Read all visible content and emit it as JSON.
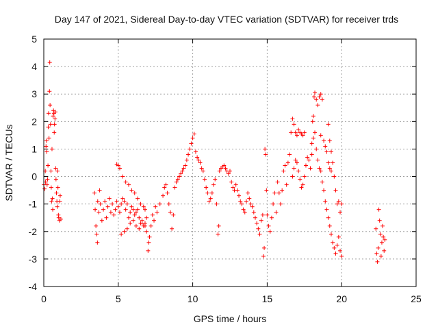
{
  "chart_data": {
    "type": "scatter",
    "title": "Day 147 of 2021, Sidereal Day-to-day VTEC variation (SDTVAR) for receiver trds",
    "xlabel": "GPS time / hours",
    "ylabel": "SDTVAR / TECUs",
    "xlim": [
      0,
      25
    ],
    "ylim": [
      -4,
      5
    ],
    "xticks": [
      0,
      5,
      10,
      15,
      20,
      25
    ],
    "yticks": [
      -4,
      -3,
      -2,
      -1,
      0,
      1,
      2,
      3,
      4,
      5
    ],
    "grid": true,
    "marker": "+",
    "color": "#ff0000",
    "series": [
      {
        "name": "SDTVAR",
        "points": [
          [
            0.0,
            -0.3
          ],
          [
            0.05,
            -0.45
          ],
          [
            0.1,
            0.2
          ],
          [
            0.12,
            -0.2
          ],
          [
            0.15,
            1.1
          ],
          [
            0.18,
            1.3
          ],
          [
            0.2,
            0.9
          ],
          [
            0.22,
            -0.3
          ],
          [
            0.25,
            -0.1
          ],
          [
            0.28,
            0.4
          ],
          [
            0.3,
            1.8
          ],
          [
            0.32,
            2.3
          ],
          [
            0.35,
            1.4
          ],
          [
            0.38,
            3.1
          ],
          [
            0.4,
            4.15
          ],
          [
            0.42,
            2.6
          ],
          [
            0.45,
            1.9
          ],
          [
            0.48,
            0.2
          ],
          [
            0.5,
            -0.4
          ],
          [
            0.52,
            -0.9
          ],
          [
            0.55,
            1.0
          ],
          [
            0.58,
            -0.8
          ],
          [
            0.6,
            -1.2
          ],
          [
            0.62,
            2.2
          ],
          [
            0.65,
            2.4
          ],
          [
            0.68,
            2.3
          ],
          [
            0.7,
            1.6
          ],
          [
            0.72,
            1.9
          ],
          [
            0.75,
            2.1
          ],
          [
            0.78,
            2.35
          ],
          [
            0.8,
            0.3
          ],
          [
            0.82,
            -0.1
          ],
          [
            0.85,
            -0.6
          ],
          [
            0.88,
            -0.9
          ],
          [
            0.9,
            -1.1
          ],
          [
            0.92,
            0.2
          ],
          [
            0.95,
            -0.4
          ],
          [
            0.98,
            -1.4
          ],
          [
            1.0,
            -1.5
          ],
          [
            1.05,
            -1.6
          ],
          [
            1.08,
            -0.9
          ],
          [
            1.1,
            -0.7
          ],
          [
            1.15,
            -1.55
          ],
          [
            3.4,
            -0.6
          ],
          [
            3.45,
            -1.2
          ],
          [
            3.5,
            -1.8
          ],
          [
            3.55,
            -2.1
          ],
          [
            3.6,
            -2.4
          ],
          [
            3.62,
            -0.9
          ],
          [
            3.7,
            -1.3
          ],
          [
            3.75,
            -0.5
          ],
          [
            3.8,
            -1.0
          ],
          [
            3.9,
            -1.6
          ],
          [
            4.0,
            -1.2
          ],
          [
            4.1,
            -0.9
          ],
          [
            4.2,
            -1.5
          ],
          [
            4.3,
            -1.1
          ],
          [
            4.4,
            -0.8
          ],
          [
            4.5,
            -1.3
          ],
          [
            4.6,
            -1.0
          ],
          [
            4.7,
            -1.4
          ],
          [
            4.8,
            -1.2
          ],
          [
            4.9,
            -0.9
          ],
          [
            5.0,
            -1.1
          ],
          [
            5.1,
            -1.3
          ],
          [
            5.2,
            -1.0
          ],
          [
            5.3,
            -0.8
          ],
          [
            5.4,
            -0.9
          ],
          [
            5.5,
            -1.2
          ],
          [
            5.6,
            -1.0
          ],
          [
            5.7,
            -1.5
          ],
          [
            5.8,
            -1.3
          ],
          [
            5.9,
            -1.1
          ],
          [
            6.0,
            -1.2
          ],
          [
            6.1,
            -1.4
          ],
          [
            6.2,
            -1.3
          ],
          [
            6.3,
            -1.2
          ],
          [
            6.4,
            -1.5
          ],
          [
            6.5,
            -1.7
          ],
          [
            6.6,
            -1.6
          ],
          [
            6.7,
            -1.8
          ],
          [
            6.8,
            -1.7
          ],
          [
            6.9,
            -2.0
          ],
          [
            7.0,
            -2.7
          ],
          [
            7.05,
            -2.4
          ],
          [
            7.1,
            -2.2
          ],
          [
            7.2,
            -1.8
          ],
          [
            7.3,
            -1.4
          ],
          [
            7.4,
            -1.6
          ],
          [
            7.5,
            -1.1
          ],
          [
            4.9,
            0.45
          ],
          [
            5.0,
            0.4
          ],
          [
            5.1,
            0.3
          ],
          [
            5.3,
            0.0
          ],
          [
            5.5,
            -0.2
          ],
          [
            5.7,
            -0.3
          ],
          [
            5.9,
            -0.5
          ],
          [
            6.1,
            -0.6
          ],
          [
            6.3,
            -0.8
          ],
          [
            6.5,
            -1.0
          ],
          [
            6.7,
            -1.1
          ],
          [
            6.8,
            -1.2
          ],
          [
            6.9,
            -1.5
          ],
          [
            5.2,
            -2.1
          ],
          [
            5.4,
            -2.0
          ],
          [
            5.6,
            -1.9
          ],
          [
            5.8,
            -1.7
          ],
          [
            6.0,
            -1.6
          ],
          [
            6.2,
            -1.8
          ],
          [
            6.4,
            -1.9
          ],
          [
            6.6,
            -1.7
          ],
          [
            6.8,
            -1.8
          ],
          [
            7.6,
            -1.3
          ],
          [
            7.8,
            -1.0
          ],
          [
            8.0,
            -0.7
          ],
          [
            8.1,
            -0.4
          ],
          [
            8.2,
            -0.3
          ],
          [
            8.3,
            -0.6
          ],
          [
            8.4,
            -1.0
          ],
          [
            8.5,
            -1.3
          ],
          [
            8.6,
            -1.9
          ],
          [
            8.7,
            -1.4
          ],
          [
            8.8,
            -0.4
          ],
          [
            8.9,
            -0.2
          ],
          [
            9.0,
            -0.1
          ],
          [
            9.1,
            0.0
          ],
          [
            9.2,
            0.1
          ],
          [
            9.3,
            0.2
          ],
          [
            9.4,
            0.3
          ],
          [
            9.5,
            0.4
          ],
          [
            9.6,
            0.6
          ],
          [
            9.7,
            0.8
          ],
          [
            9.8,
            1.0
          ],
          [
            9.9,
            1.2
          ],
          [
            10.0,
            1.4
          ],
          [
            10.1,
            1.55
          ],
          [
            10.2,
            0.9
          ],
          [
            10.3,
            0.7
          ],
          [
            10.4,
            0.6
          ],
          [
            10.5,
            0.5
          ],
          [
            10.6,
            0.3
          ],
          [
            10.7,
            0.2
          ],
          [
            10.8,
            -0.1
          ],
          [
            10.9,
            -0.4
          ],
          [
            11.0,
            -0.6
          ],
          [
            11.1,
            -0.9
          ],
          [
            11.2,
            -0.8
          ],
          [
            11.3,
            -0.6
          ],
          [
            11.4,
            -0.3
          ],
          [
            11.5,
            -0.1
          ],
          [
            11.6,
            -1.0
          ],
          [
            11.7,
            -2.1
          ],
          [
            11.75,
            -1.8
          ],
          [
            11.8,
            0.2
          ],
          [
            11.9,
            0.3
          ],
          [
            12.0,
            0.35
          ],
          [
            12.1,
            0.4
          ],
          [
            12.2,
            0.3
          ],
          [
            12.3,
            0.2
          ],
          [
            12.4,
            0.1
          ],
          [
            12.5,
            0.2
          ],
          [
            12.6,
            -0.2
          ],
          [
            12.7,
            -0.4
          ],
          [
            12.8,
            -0.5
          ],
          [
            12.9,
            -0.3
          ],
          [
            13.0,
            -0.5
          ],
          [
            13.1,
            -0.7
          ],
          [
            13.2,
            -0.9
          ],
          [
            13.3,
            -1.0
          ],
          [
            13.4,
            -1.2
          ],
          [
            13.5,
            -1.3
          ],
          [
            13.6,
            -0.9
          ],
          [
            13.7,
            -0.6
          ],
          [
            13.8,
            -0.8
          ],
          [
            13.9,
            -1.0
          ],
          [
            14.0,
            -1.1
          ],
          [
            14.1,
            -1.3
          ],
          [
            14.2,
            -1.5
          ],
          [
            14.3,
            -1.7
          ],
          [
            14.4,
            -1.9
          ],
          [
            14.5,
            -2.1
          ],
          [
            14.6,
            -1.6
          ],
          [
            14.7,
            -1.4
          ],
          [
            14.75,
            -2.9
          ],
          [
            14.8,
            -2.6
          ],
          [
            14.85,
            1.0
          ],
          [
            14.9,
            0.8
          ],
          [
            14.95,
            -0.5
          ],
          [
            15.0,
            -1.4
          ],
          [
            15.1,
            -1.8
          ],
          [
            15.2,
            -2.0
          ],
          [
            15.3,
            -1.5
          ],
          [
            15.4,
            -1.0
          ],
          [
            15.5,
            -0.6
          ],
          [
            15.6,
            -1.3
          ],
          [
            15.7,
            -0.2
          ],
          [
            15.8,
            -0.6
          ],
          [
            15.9,
            -1.0
          ],
          [
            16.0,
            -0.5
          ],
          [
            16.1,
            0.2
          ],
          [
            16.2,
            0.4
          ],
          [
            16.3,
            -0.3
          ],
          [
            16.4,
            0.5
          ],
          [
            16.5,
            0.8
          ],
          [
            16.6,
            1.6
          ],
          [
            16.7,
            2.1
          ],
          [
            16.8,
            1.9
          ],
          [
            16.9,
            1.6
          ],
          [
            17.0,
            1.5
          ],
          [
            17.1,
            1.7
          ],
          [
            17.2,
            1.6
          ],
          [
            17.3,
            1.55
          ],
          [
            17.4,
            1.5
          ],
          [
            17.5,
            1.6
          ],
          [
            16.7,
            0.0
          ],
          [
            16.8,
            0.3
          ],
          [
            16.9,
            0.6
          ],
          [
            17.0,
            0.5
          ],
          [
            17.1,
            0.2
          ],
          [
            17.2,
            -0.1
          ],
          [
            17.3,
            -0.4
          ],
          [
            17.4,
            -0.3
          ],
          [
            17.5,
            0.0
          ],
          [
            17.6,
            0.4
          ],
          [
            17.7,
            0.7
          ],
          [
            17.8,
            0.6
          ],
          [
            17.9,
            0.3
          ],
          [
            18.0,
            0.8
          ],
          [
            18.05,
            2.0
          ],
          [
            18.1,
            2.2
          ],
          [
            18.15,
            2.9
          ],
          [
            18.2,
            3.05
          ],
          [
            18.3,
            2.8
          ],
          [
            18.4,
            2.6
          ],
          [
            18.5,
            2.9
          ],
          [
            18.6,
            3.0
          ],
          [
            18.7,
            2.8
          ],
          [
            18.5,
            0.3
          ],
          [
            18.6,
            0.2
          ],
          [
            18.7,
            -0.2
          ],
          [
            18.8,
            -0.5
          ],
          [
            18.9,
            -0.9
          ],
          [
            19.0,
            -1.2
          ],
          [
            19.1,
            -1.5
          ],
          [
            19.2,
            -1.8
          ],
          [
            19.3,
            -2.1
          ],
          [
            19.4,
            -2.4
          ],
          [
            19.5,
            -2.6
          ],
          [
            19.6,
            -2.8
          ],
          [
            19.7,
            -2.5
          ],
          [
            19.8,
            -2.2
          ],
          [
            19.9,
            -2.7
          ],
          [
            20.0,
            -2.9
          ],
          [
            18.0,
            1.2
          ],
          [
            18.1,
            1.4
          ],
          [
            18.2,
            1.6
          ],
          [
            18.3,
            1.0
          ],
          [
            18.4,
            0.6
          ],
          [
            18.6,
            1.5
          ],
          [
            18.8,
            1.3
          ],
          [
            18.9,
            1.1
          ],
          [
            19.0,
            0.9
          ],
          [
            19.1,
            0.5
          ],
          [
            19.2,
            0.3
          ],
          [
            19.3,
            0.2
          ],
          [
            19.1,
            1.9
          ],
          [
            19.2,
            1.3
          ],
          [
            19.3,
            0.9
          ],
          [
            19.4,
            0.5
          ],
          [
            19.5,
            0.0
          ],
          [
            19.6,
            -0.5
          ],
          [
            19.7,
            -1.0
          ],
          [
            19.8,
            -0.9
          ],
          [
            19.9,
            -1.3
          ],
          [
            20.0,
            -1.0
          ],
          [
            22.3,
            -1.9
          ],
          [
            22.35,
            -2.8
          ],
          [
            22.4,
            -3.1
          ],
          [
            22.45,
            -2.6
          ],
          [
            22.5,
            -1.2
          ],
          [
            22.55,
            -1.6
          ],
          [
            22.6,
            -2.1
          ],
          [
            22.65,
            -2.9
          ],
          [
            22.7,
            -2.4
          ],
          [
            22.75,
            -1.8
          ],
          [
            22.8,
            -2.2
          ],
          [
            22.85,
            -2.7
          ],
          [
            22.9,
            -2.3
          ]
        ]
      }
    ]
  }
}
